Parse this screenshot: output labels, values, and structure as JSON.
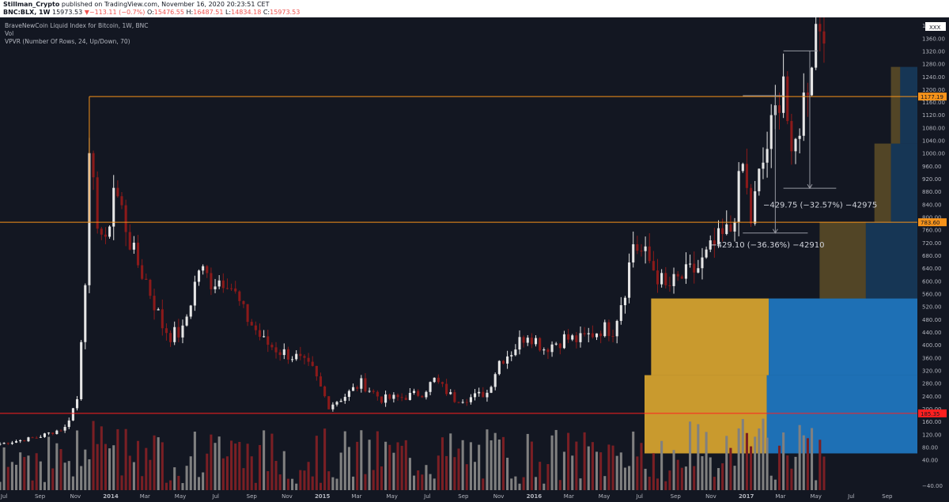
{
  "header": {
    "author": "Stillman_Crypto",
    "published": "published on TradingView.com, November 16, 2020 20:23:51 CET",
    "symbol": "BNC:BLX, 1W",
    "last": "15973.53",
    "change_arrow": "▼",
    "change": "−113.11 (−0.7%)",
    "o_label": "O:",
    "o_val": "15476.55",
    "h_label": "H:",
    "h_val": "16487.51",
    "l_label": "L:",
    "l_val": "14834.18",
    "c_label": "C:",
    "c_val": "15973.53"
  },
  "legend": {
    "line1": "BraveNewCoin Liquid Index for Bitcoin, 1W, BNC",
    "line2": "Vol",
    "line3": "VPVR (Number Of Rows, 24, Up/Down, 70)"
  },
  "colors": {
    "background": "#131722",
    "up_candle": "#e6e6e6",
    "down_candle": "#8b1a1a",
    "up_volume": "#808080",
    "down_volume": "#7a1f24",
    "orange_line": "#f7931a",
    "red_line": "#ff2020",
    "vpvr_up": "#c99a2e",
    "vpvr_down": "#1e70b5"
  },
  "chart_data": {
    "type": "candlestick",
    "y_axis_ticks": [
      "1400.00",
      "1360.00",
      "1320.00",
      "1280.00",
      "1240.00",
      "1200.00",
      "1160.00",
      "1120.00",
      "1080.00",
      "1040.00",
      "1000.00",
      "960.00",
      "920.00",
      "880.00",
      "840.00",
      "800.00",
      "760.00",
      "720.00",
      "680.00",
      "640.00",
      "600.00",
      "560.00",
      "520.00",
      "480.00",
      "440.00",
      "400.00",
      "360.00",
      "320.00",
      "280.00",
      "240.00",
      "200.00",
      "160.00",
      "120.00",
      "80.00",
      "40.00",
      "−40.00"
    ],
    "ylim": [
      -55,
      1425
    ],
    "x_axis_ticks": [
      "Jul",
      "Sep",
      "Nov",
      "2014",
      "Mar",
      "May",
      "Jul",
      "Sep",
      "Nov",
      "2015",
      "Mar",
      "May",
      "Jul",
      "Sep",
      "Nov",
      "2016",
      "Mar",
      "May",
      "Jul",
      "Sep",
      "Nov",
      "2017",
      "Mar",
      "May",
      "Jul",
      "Sep"
    ],
    "x_range": [
      "2013-06-24",
      "2017-10-23"
    ],
    "price_labels": [
      {
        "text": "1177.19",
        "value": 1177.19,
        "color": "#f7931a"
      },
      {
        "text": "783.60",
        "value": 783.6,
        "color": "#f7931a"
      },
      {
        "text": "185.35",
        "value": 185.35,
        "color": "#ff2020"
      }
    ],
    "corner_label": "XXX",
    "horizontal_lines": [
      {
        "value": 1177.19,
        "from": "2013-11-25",
        "color": "#f7931a"
      },
      {
        "value": 783.6,
        "from": "2013-06-24",
        "color": "#f7931a"
      },
      {
        "value": 185.35,
        "from": "2013-06-24",
        "color": "#ff2020"
      }
    ],
    "annotations": [
      {
        "text": "−429.75 (−32.57%) −42975",
        "date": "2017-01-30",
        "value": 830
      },
      {
        "text": "−429.10 (−36.36%) −42910",
        "date": "2016-10-31",
        "value": 705
      }
    ],
    "measure_boxes": [
      {
        "from": "2016-12-26",
        "to": "2017-04-17",
        "high": 1180,
        "low": 750
      },
      {
        "from": "2017-03-06",
        "to": "2017-06-05",
        "high": 1320,
        "low": 890
      }
    ],
    "vpvr_rows": [
      {
        "low": 60,
        "high": 305,
        "up": 185,
        "down": 228
      },
      {
        "low": 305,
        "high": 545,
        "up": 178,
        "down": 225
      },
      {
        "low": 545,
        "high": 785,
        "up": 70,
        "down": 78
      },
      {
        "low": 785,
        "high": 1030,
        "up": 25,
        "down": 40
      },
      {
        "low": 1030,
        "high": 1270,
        "up": 14,
        "down": 26
      }
    ],
    "series": [
      {
        "name": "BNC:BLX",
        "ohlc_anchors": [
          [
            "2013-06-24",
            90
          ],
          [
            "2013-08-26",
            110
          ],
          [
            "2013-10-14",
            140
          ],
          [
            "2013-11-04",
            230
          ],
          [
            "2013-11-18",
            620
          ],
          [
            "2013-11-25",
            950
          ],
          [
            "2013-12-09",
            800
          ],
          [
            "2013-12-23",
            700
          ],
          [
            "2014-01-06",
            900
          ],
          [
            "2014-01-20",
            820
          ],
          [
            "2014-02-10",
            680
          ],
          [
            "2014-03-03",
            600
          ],
          [
            "2014-03-31",
            460
          ],
          [
            "2014-04-14",
            430
          ],
          [
            "2014-05-05",
            440
          ],
          [
            "2014-06-02",
            640
          ],
          [
            "2014-06-23",
            600
          ],
          [
            "2014-07-21",
            610
          ],
          [
            "2014-08-18",
            500
          ],
          [
            "2014-09-22",
            410
          ],
          [
            "2014-10-20",
            380
          ],
          [
            "2014-11-17",
            360
          ],
          [
            "2014-12-15",
            320
          ],
          [
            "2015-01-12",
            210
          ],
          [
            "2015-02-09",
            240
          ],
          [
            "2015-03-09",
            280
          ],
          [
            "2015-04-13",
            230
          ],
          [
            "2015-05-18",
            235
          ],
          [
            "2015-06-22",
            250
          ],
          [
            "2015-07-13",
            290
          ],
          [
            "2015-08-17",
            230
          ],
          [
            "2015-09-14",
            235
          ],
          [
            "2015-10-12",
            250
          ],
          [
            "2015-11-02",
            350
          ],
          [
            "2015-11-23",
            380
          ],
          [
            "2015-12-21",
            440
          ],
          [
            "2016-01-18",
            390
          ],
          [
            "2016-02-22",
            420
          ],
          [
            "2016-03-21",
            415
          ],
          [
            "2016-04-25",
            450
          ],
          [
            "2016-05-16",
            450
          ],
          [
            "2016-06-06",
            580
          ],
          [
            "2016-06-20",
            720
          ],
          [
            "2016-07-18",
            660
          ],
          [
            "2016-08-15",
            575
          ],
          [
            "2016-09-12",
            610
          ],
          [
            "2016-10-10",
            640
          ],
          [
            "2016-11-07",
            710
          ],
          [
            "2016-12-05",
            760
          ],
          [
            "2016-12-26",
            960
          ],
          [
            "2017-01-09",
            790
          ],
          [
            "2017-01-23",
            920
          ],
          [
            "2017-02-20",
            1120
          ],
          [
            "2017-03-06",
            1260
          ],
          [
            "2017-03-20",
            950
          ],
          [
            "2017-04-03",
            1100
          ],
          [
            "2017-04-17",
            1230
          ],
          [
            "2017-05-01",
            1400
          ],
          [
            "2017-05-15",
            1425
          ]
        ]
      }
    ]
  }
}
